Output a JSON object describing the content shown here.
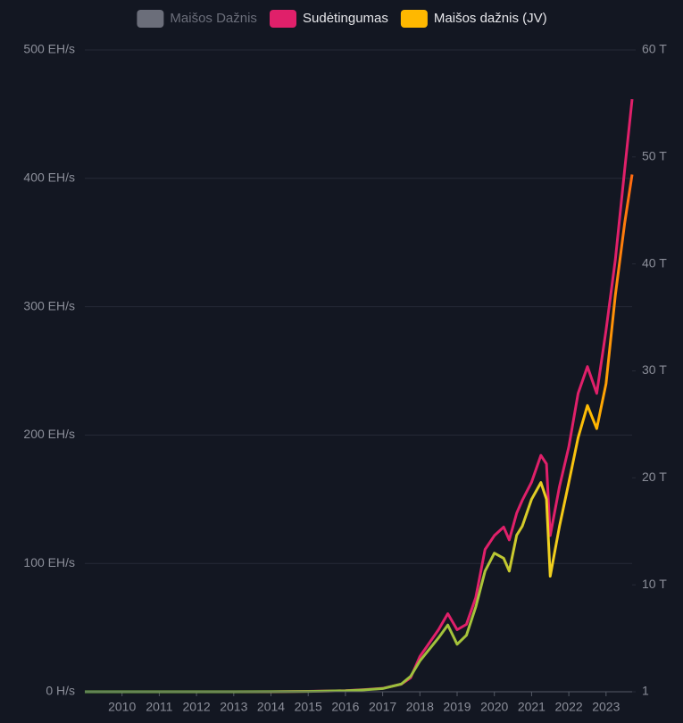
{
  "chart_data": {
    "type": "line",
    "x": [
      2009,
      2010,
      2011,
      2012,
      2013,
      2014,
      2015,
      2016,
      2016.5,
      2017,
      2017.5,
      2017.75,
      2018,
      2018.5,
      2018.75,
      2019,
      2019.25,
      2019.5,
      2019.75,
      2020,
      2020.25,
      2020.4,
      2020.6,
      2020.75,
      2021,
      2021.25,
      2021.4,
      2021.5,
      2021.75,
      2022,
      2022.25,
      2022.5,
      2022.75,
      2023,
      2023.25,
      2023.5,
      2023.7
    ],
    "xlim": [
      2009,
      2023.7
    ],
    "xticks": [
      2010,
      2011,
      2012,
      2013,
      2014,
      2015,
      2016,
      2017,
      2018,
      2019,
      2020,
      2021,
      2022,
      2023
    ],
    "ylim": [
      0,
      500
    ],
    "yticks": [
      {
        "value": 0,
        "label": "0 H/s"
      },
      {
        "value": 100,
        "label": "100 EH/s"
      },
      {
        "value": 200,
        "label": "200 EH/s"
      },
      {
        "value": 300,
        "label": "300 EH/s"
      },
      {
        "value": 400,
        "label": "400 EH/s"
      },
      {
        "value": 500,
        "label": "500 EH/s"
      }
    ],
    "y2lim": [
      0,
      60000000000000
    ],
    "y2ticks": [
      1,
      {
        "value": 10000000000000,
        "label": "10 T"
      },
      {
        "value": 20000000000000,
        "label": "20 T"
      },
      {
        "value": 30000000000000,
        "label": "30 T"
      },
      {
        "value": 40000000000000,
        "label": "40 T"
      },
      {
        "value": 50000000000000,
        "label": "50 T"
      },
      {
        "value": 60000000000000,
        "label": "60 T"
      }
    ],
    "grid": true,
    "legend": "top",
    "series": [
      {
        "name": "Maišos Dažnis",
        "color": "#6b6e7a",
        "hidden": true,
        "values": [
          null,
          null,
          null,
          null,
          null,
          null,
          null,
          null,
          null,
          null,
          null,
          null,
          null,
          null,
          null,
          null,
          null,
          null,
          null,
          null,
          null,
          null,
          null,
          null,
          null,
          null,
          null,
          null,
          null,
          null,
          null,
          null,
          null,
          null,
          null,
          null,
          null
        ]
      },
      {
        "name": "Sudėtingumas",
        "color": "#e0206a",
        "axis": "y2",
        "values": [
          1,
          1200,
          1400000,
          1200000,
          3300000,
          1400000000,
          44000000000,
          100000000000,
          200000000000,
          320000000000,
          710000000000,
          1300000000000,
          3300000000000,
          5800000000000,
          7300000000000,
          5800000000000,
          6300000000000,
          8800000000000,
          13300000000000,
          14600000000000,
          15400000000000,
          14200000000000,
          16700000000000,
          17900000000000,
          19600000000000,
          22100000000000,
          21300000000000,
          14600000000000,
          19200000000000,
          22900000000000,
          27900000000000,
          30400000000000,
          27900000000000,
          33800000000000,
          40400000000000,
          48800000000000,
          55400000000000
        ]
      },
      {
        "name": "Maišos dažnis (JV)",
        "color": "#ffb800",
        "values": [
          0,
          0,
          0,
          0,
          0,
          0.1,
          0.3,
          0.8,
          1.5,
          2.5,
          6,
          12,
          24,
          42,
          52,
          37,
          44,
          66,
          94,
          108,
          104,
          94,
          122,
          129,
          150,
          163,
          150,
          90,
          129,
          163,
          198,
          223,
          205,
          240,
          309,
          365,
          403
        ]
      }
    ]
  }
}
